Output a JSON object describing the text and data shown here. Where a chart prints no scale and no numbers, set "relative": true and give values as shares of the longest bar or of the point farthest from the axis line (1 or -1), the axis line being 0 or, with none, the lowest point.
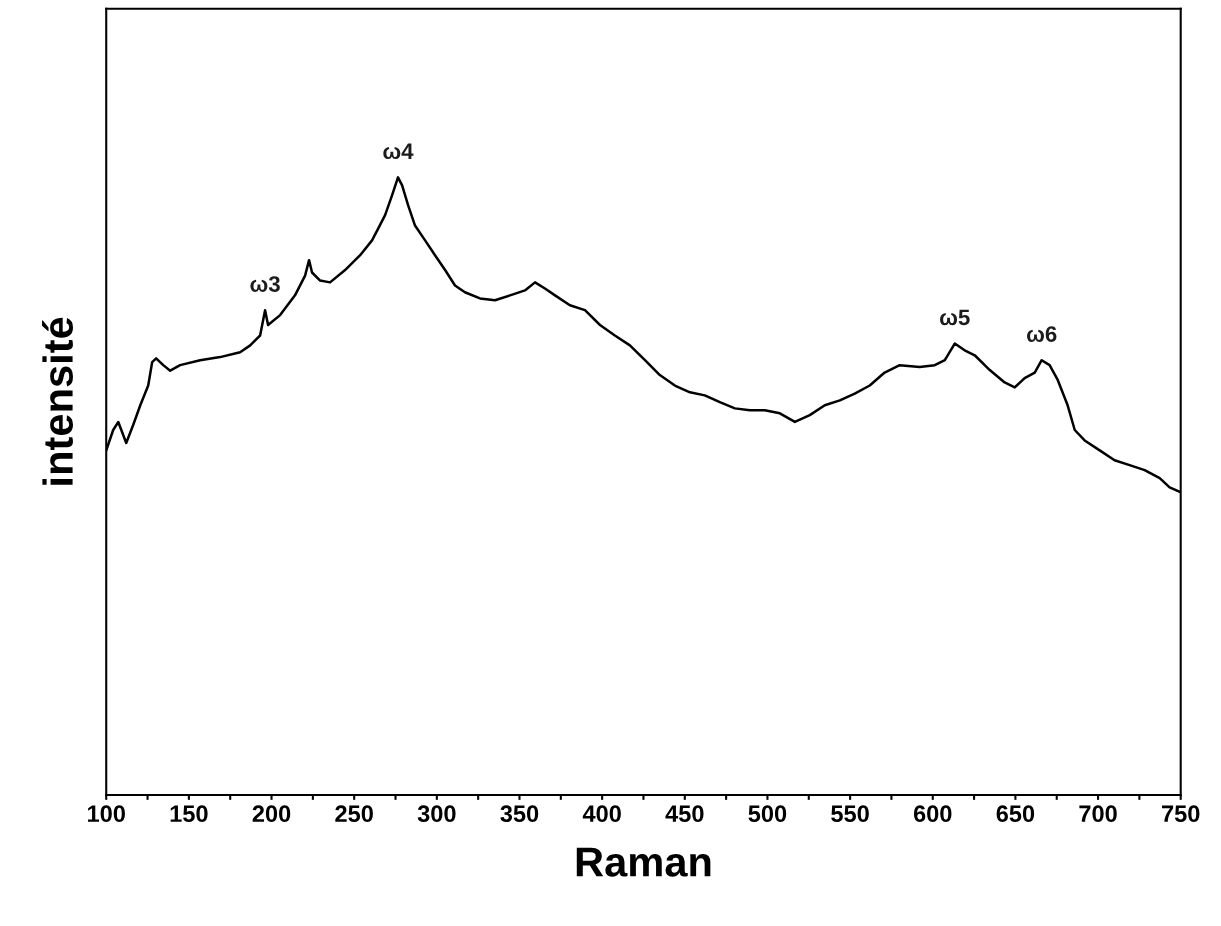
{
  "chart_data": {
    "type": "line",
    "xlabel": "Raman",
    "ylabel": "intensité",
    "relative": true,
    "xlim": [
      100,
      750
    ],
    "xticks": [
      100,
      {
        "value": 125,
        "label": null
      },
      150,
      {
        "value": 175,
        "label": null
      },
      200,
      {
        "value": 225,
        "label": null
      },
      250,
      {
        "value": 275,
        "label": null
      },
      300,
      {
        "value": 325,
        "label": null
      },
      350,
      {
        "value": 375,
        "label": null
      },
      400,
      {
        "value": 425,
        "label": null
      },
      450,
      {
        "value": 475,
        "label": null
      },
      500,
      {
        "value": 525,
        "label": null
      },
      550,
      {
        "value": 575,
        "label": null
      },
      600,
      {
        "value": 625,
        "label": null
      },
      650,
      {
        "value": 675,
        "label": null
      },
      700,
      {
        "value": 725,
        "label": null
      },
      750
    ],
    "tick_labels": "x",
    "grid": false,
    "legend": false,
    "marker": "none",
    "line_style": "solid",
    "series": [
      {
        "color": "#000000",
        "x": [
          100,
          104.2,
          107.3,
          112.1,
          116.3,
          120.6,
          125.4,
          127.8,
          130.2,
          134.5,
          138.7,
          144.7,
          156.8,
          168.9,
          181.0,
          187.1,
          193.1,
          196.1,
          197.9,
          205.2,
          214.2,
          220.3,
          222.7,
          224.5,
          229.4,
          235.4,
          244.5,
          253.6,
          260.8,
          264.5,
          268.7,
          272.9,
          276.5,
          279.0,
          282.6,
          286.8,
          292.9,
          298.9,
          305.0,
          311.0,
          317.0,
          326.1,
          335.2,
          344.3,
          353.3,
          359.4,
          365.4,
          371.5,
          380.5,
          389.6,
          398.7,
          407.7,
          416.8,
          425.9,
          434.9,
          444.0,
          453.1,
          462.1,
          471.2,
          480.3,
          489.4,
          498.4,
          507.5,
          516.6,
          525.6,
          534.7,
          543.8,
          552.8,
          561.9,
          570.9,
          580.0,
          592.1,
          601.2,
          607.3,
          613.3,
          619.3,
          625.4,
          634.5,
          643.5,
          649.6,
          655.6,
          661.7,
          665.9,
          670.7,
          675.6,
          681.6,
          685.9,
          691.9,
          701.0,
          710.0,
          719.1,
          728.2,
          737.3,
          743.3,
          750
        ],
        "values": [
          0.558,
          0.591,
          0.604,
          0.57,
          0.599,
          0.631,
          0.663,
          0.701,
          0.707,
          0.696,
          0.687,
          0.696,
          0.704,
          0.709,
          0.717,
          0.728,
          0.744,
          0.785,
          0.761,
          0.777,
          0.809,
          0.841,
          0.866,
          0.846,
          0.833,
          0.83,
          0.85,
          0.874,
          0.898,
          0.917,
          0.939,
          0.971,
          1,
          0.987,
          0.955,
          0.922,
          0.898,
          0.874,
          0.85,
          0.825,
          0.814,
          0.804,
          0.801,
          0.809,
          0.817,
          0.83,
          0.82,
          0.809,
          0.793,
          0.785,
          0.761,
          0.744,
          0.728,
          0.704,
          0.68,
          0.663,
          0.652,
          0.647,
          0.636,
          0.626,
          0.623,
          0.623,
          0.618,
          0.604,
          0.615,
          0.631,
          0.639,
          0.65,
          0.663,
          0.684,
          0.696,
          0.693,
          0.696,
          0.704,
          0.731,
          0.72,
          0.712,
          0.688,
          0.668,
          0.66,
          0.675,
          0.684,
          0.704,
          0.696,
          0.672,
          0.631,
          0.591,
          0.574,
          0.558,
          0.542,
          0.534,
          0.526,
          0.513,
          0.498,
          0.49
        ]
      }
    ],
    "annotations": [
      {
        "text": "ω3",
        "x": 196.1,
        "y": 0.785
      },
      {
        "text": "ω4",
        "x": 276.5,
        "y": 1
      },
      {
        "text": "ω5",
        "x": 613.3,
        "y": 0.731
      },
      {
        "text": "ω6",
        "x": 665.9,
        "y": 0.704
      }
    ]
  }
}
